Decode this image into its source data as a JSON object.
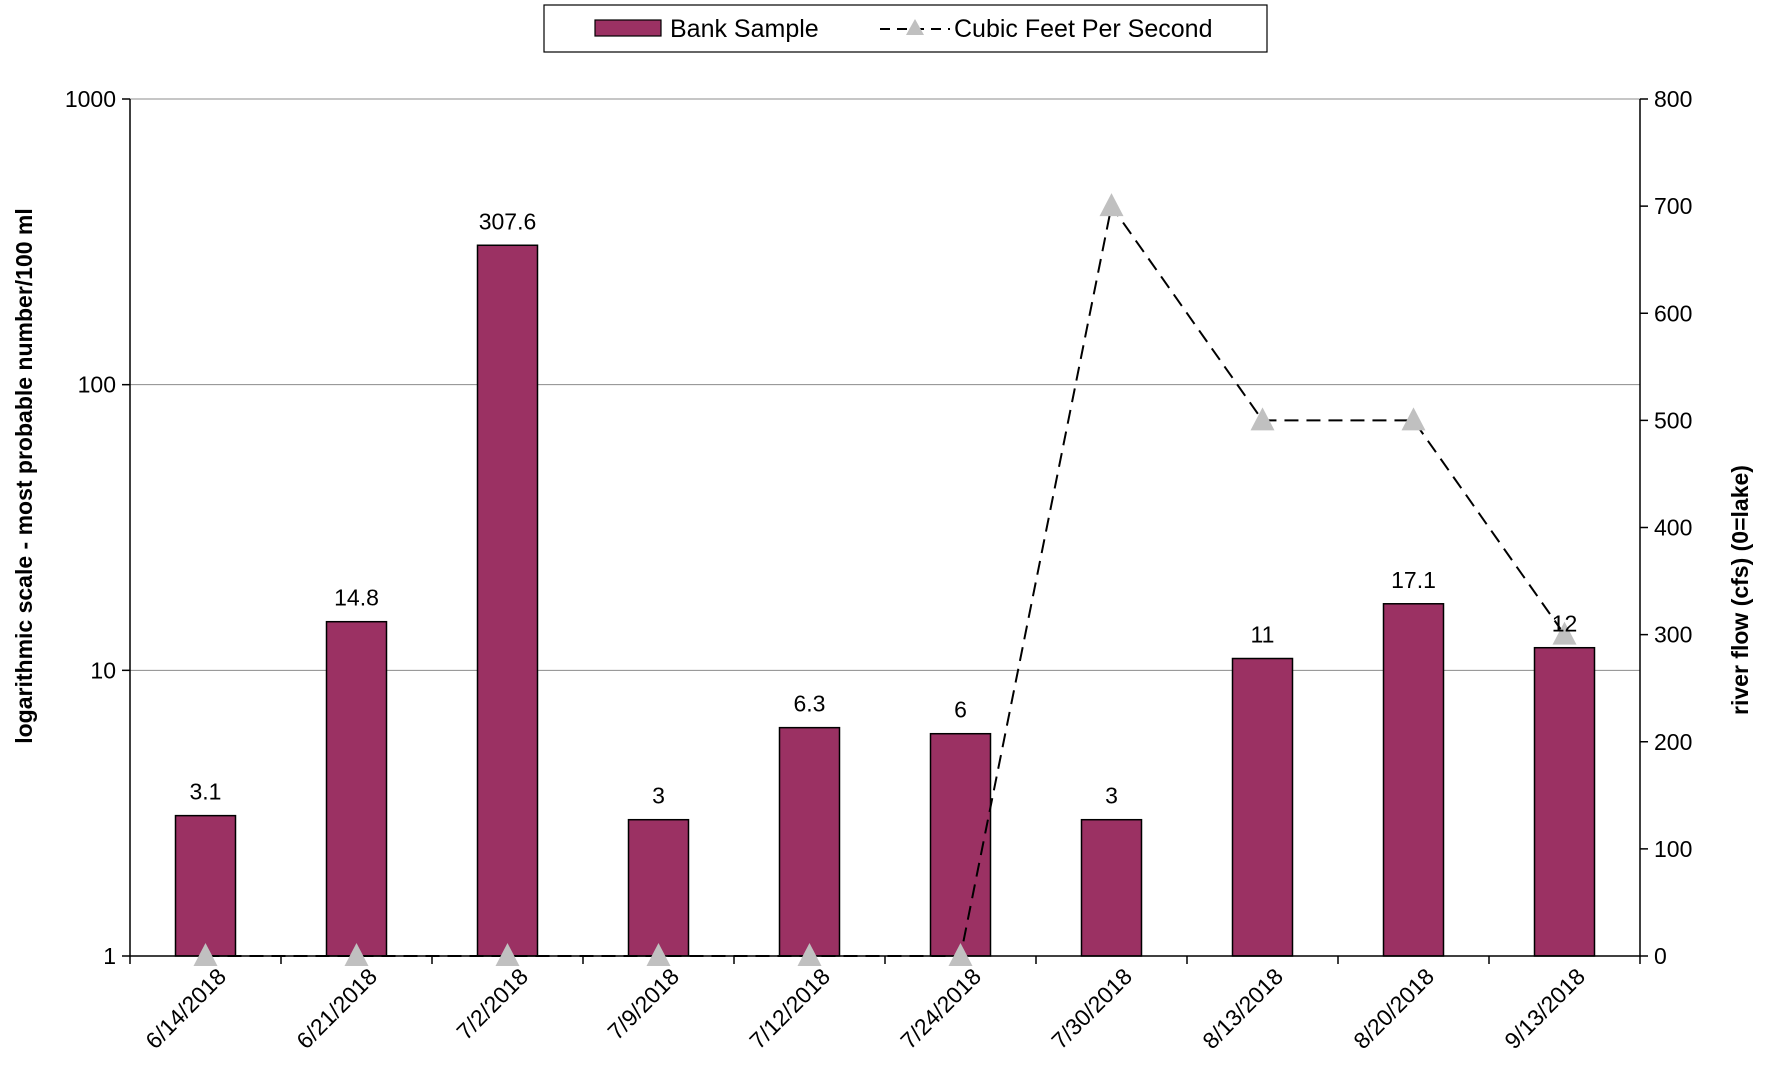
{
  "chart_data": {
    "type": "bar",
    "categories": [
      "6/14/2018",
      "6/21/2018",
      "7/2/2018",
      "7/9/2018",
      "7/12/2018",
      "7/24/2018",
      "7/30/2018",
      "8/13/2018",
      "8/20/2018",
      "9/13/2018"
    ],
    "series": [
      {
        "name": "Bank Sample",
        "kind": "bar",
        "axis": "left",
        "color": "#9b3163",
        "values": [
          3.1,
          14.8,
          307.6,
          3,
          6.3,
          6,
          3,
          11,
          17.1,
          12
        ],
        "labels": [
          "3.1",
          "14.8",
          "307.6",
          "3",
          "6.3",
          "6",
          "3",
          "11",
          "17.1",
          "12"
        ]
      },
      {
        "name": "Cubic Feet Per Second",
        "kind": "line",
        "line_style": "dashed",
        "marker": "triangle",
        "marker_color": "#c0c0c0",
        "axis": "right",
        "values": [
          0,
          0,
          0,
          0,
          0,
          0,
          700,
          500,
          500,
          300
        ]
      }
    ],
    "ylabel": "logarithmic scale - most probable number/100 ml",
    "y2label": "river flow (cfs) (0=lake)",
    "yscale": "log",
    "ylim": [
      1,
      1000
    ],
    "yticks": [
      "1",
      "10",
      "100",
      "1000"
    ],
    "y2lim": [
      0,
      800
    ],
    "y2ticks": [
      "0",
      "100",
      "200",
      "300",
      "400",
      "500",
      "600",
      "700",
      "800"
    ],
    "grid": "horizontal at left-axis major ticks",
    "legend": {
      "position": "top-center",
      "entries": [
        "Bank Sample",
        "Cubic Feet Per Second"
      ]
    }
  }
}
